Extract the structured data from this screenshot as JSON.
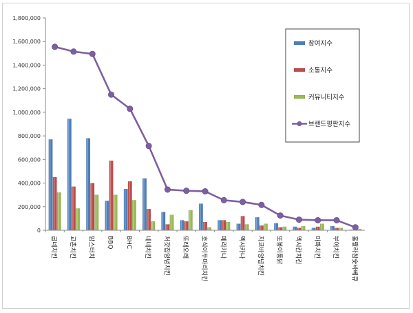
{
  "chart_data": {
    "type": "bar",
    "categories": [
      "굽네치킨",
      "교촌치킨",
      "맘스터치",
      "BBQ",
      "BHC",
      "네네치킨",
      "처갓집양념치킨",
      "또래오래",
      "호식이두마리치킨",
      "페리카나",
      "멕시카나",
      "지코바양념치킨",
      "또봉이통닭",
      "멕시칸치킨",
      "마파치킨",
      "부어치킨",
      "훌랄라참숯바베큐"
    ],
    "series": [
      {
        "name": "참여지수",
        "type": "bar",
        "color": "#4a7ebb",
        "values": [
          770000,
          945000,
          780000,
          250000,
          350000,
          440000,
          155000,
          85000,
          225000,
          85000,
          55000,
          110000,
          60000,
          30000,
          20000,
          35000,
          5000
        ]
      },
      {
        "name": "소통지수",
        "type": "bar",
        "color": "#be4b48",
        "values": [
          450000,
          370000,
          400000,
          590000,
          415000,
          180000,
          50000,
          75000,
          70000,
          85000,
          120000,
          40000,
          25000,
          20000,
          30000,
          20000,
          5000
        ]
      },
      {
        "name": "커뮤니티지수",
        "type": "bar",
        "color": "#98b954",
        "values": [
          320000,
          185000,
          300000,
          300000,
          255000,
          75000,
          130000,
          170000,
          25000,
          70000,
          50000,
          55000,
          30000,
          35000,
          55000,
          20000,
          10000
        ]
      },
      {
        "name": "브랜드평판지수",
        "type": "line",
        "color": "#7d60a0",
        "values": [
          1555000,
          1515000,
          1495000,
          1150000,
          1030000,
          715000,
          345000,
          335000,
          330000,
          255000,
          240000,
          215000,
          125000,
          90000,
          85000,
          85000,
          25000
        ]
      }
    ],
    "yticks": [
      "0",
      "200,000",
      "400,000",
      "600,000",
      "800,000",
      "1,000,000",
      "1,200,000",
      "1,400,000",
      "1,600,000",
      "1,800,000"
    ],
    "ylim": [
      0,
      1800000
    ],
    "grid": false,
    "legend": "right"
  }
}
